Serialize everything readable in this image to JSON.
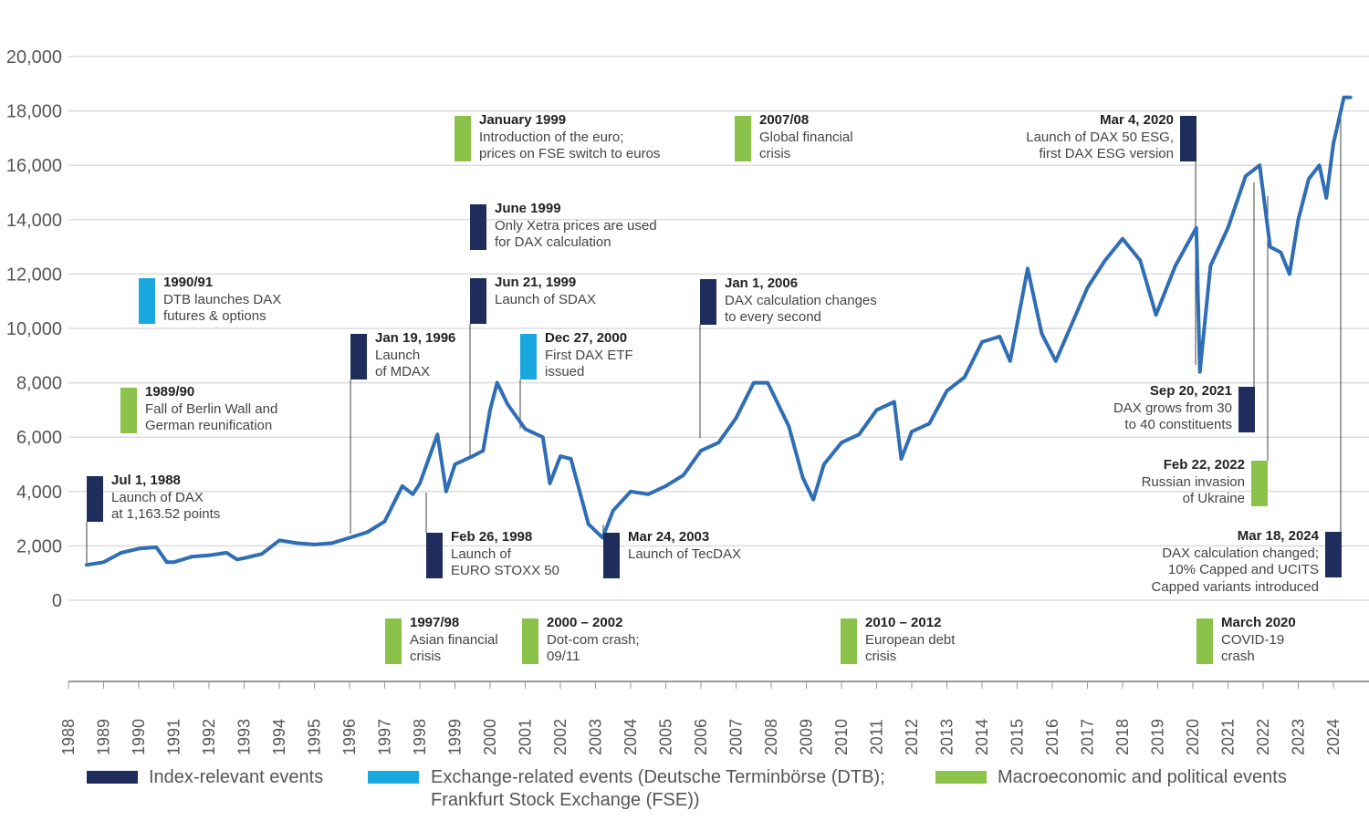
{
  "chart_data": {
    "type": "line",
    "title": "",
    "xlabel": "",
    "ylabel": "",
    "ylim": [
      0,
      20000
    ],
    "xlim": [
      1988,
      2024.8
    ],
    "y_ticks": [
      "0",
      "2,000",
      "4,000",
      "6,000",
      "8,000",
      "10,000",
      "12,000",
      "14,000",
      "16,000",
      "18,000",
      "20,000"
    ],
    "y_tick_values": [
      0,
      2000,
      4000,
      6000,
      8000,
      10000,
      12000,
      14000,
      16000,
      18000,
      20000
    ],
    "x_ticks": [
      "1988",
      "1989",
      "1990",
      "1991",
      "1992",
      "1993",
      "1994",
      "1995",
      "1996",
      "1997",
      "1998",
      "1999",
      "2000",
      "2001",
      "2002",
      "2003",
      "2004",
      "2005",
      "2006",
      "2007",
      "2008",
      "2009",
      "2010",
      "2011",
      "2012",
      "2013",
      "2014",
      "2015",
      "2016",
      "2017",
      "2018",
      "2019",
      "2020",
      "2021",
      "2022",
      "2023",
      "2024"
    ],
    "grid": "horizontal",
    "line_color": "#2f6db5",
    "series": [
      {
        "x": [
          1988.5,
          1989.0,
          1989.5,
          1990.0,
          1990.5,
          1990.8,
          1991.0,
          1991.5,
          1992.0,
          1992.5,
          1992.8,
          1993.0,
          1993.5,
          1994.0,
          1994.5,
          1995.0,
          1995.5,
          1996.0,
          1996.5,
          1997.0,
          1997.5,
          1997.8,
          1998.0,
          1998.5,
          1998.75,
          1999.0,
          1999.5,
          1999.8,
          2000.0,
          2000.2,
          2000.5,
          2001.0,
          2001.5,
          2001.7,
          2002.0,
          2002.3,
          2002.8,
          2003.2,
          2003.5,
          2004.0,
          2004.5,
          2005.0,
          2005.5,
          2006.0,
          2006.5,
          2007.0,
          2007.5,
          2007.9,
          2008.5,
          2008.9,
          2009.2,
          2009.5,
          2010.0,
          2010.5,
          2011.0,
          2011.5,
          2011.7,
          2012.0,
          2012.5,
          2013.0,
          2013.5,
          2014.0,
          2014.5,
          2014.8,
          2015.3,
          2015.7,
          2016.1,
          2016.5,
          2017.0,
          2017.5,
          2018.0,
          2018.5,
          2018.95,
          2019.5,
          2020.1,
          2020.2,
          2020.5,
          2021.0,
          2021.5,
          2021.9,
          2022.2,
          2022.5,
          2022.75,
          2023.0,
          2023.3,
          2023.6,
          2023.8,
          2024.0,
          2024.3,
          2024.5
        ],
        "y": [
          1300,
          1400,
          1750,
          1900,
          1950,
          1400,
          1400,
          1600,
          1650,
          1750,
          1500,
          1550,
          1700,
          2200,
          2100,
          2050,
          2100,
          2300,
          2500,
          2900,
          4200,
          3900,
          4300,
          6100,
          4000,
          5000,
          5300,
          5500,
          7000,
          8000,
          7200,
          6300,
          6000,
          4300,
          5300,
          5200,
          2800,
          2300,
          3300,
          4000,
          3900,
          4200,
          4600,
          5500,
          5800,
          6700,
          8000,
          8000,
          6400,
          4500,
          3700,
          5000,
          5800,
          6100,
          7000,
          7300,
          5200,
          6200,
          6500,
          7700,
          8200,
          9500,
          9700,
          8800,
          12200,
          9800,
          8800,
          10000,
          11500,
          12500,
          13300,
          12500,
          10500,
          12300,
          13700,
          8400,
          12300,
          13700,
          15600,
          16000,
          13000,
          12800,
          12000,
          14000,
          15500,
          16000,
          14800,
          16800,
          18500,
          18500
        ]
      }
    ],
    "events": [
      {
        "date": "Jul 1, 1988",
        "text": [
          "Launch of DAX",
          "at 1,163.52 points"
        ],
        "category": "index"
      },
      {
        "date": "1989/90",
        "text": [
          "Fall of Berlin Wall and",
          "German reunification"
        ],
        "category": "macro"
      },
      {
        "date": "1990/91",
        "text": [
          "DTB launches DAX",
          "futures & options"
        ],
        "category": "exchange"
      },
      {
        "date": "Jan 19, 1996",
        "text": [
          "Launch",
          "of MDAX"
        ],
        "category": "index"
      },
      {
        "date": "Feb 26, 1998",
        "text": [
          "Launch of",
          "EURO STOXX 50"
        ],
        "category": "index"
      },
      {
        "date": "January 1999",
        "text": [
          "Introduction of the euro;",
          "prices on FSE switch to euros"
        ],
        "category": "macro"
      },
      {
        "date": "June 1999",
        "text": [
          "Only Xetra prices are used",
          "for DAX calculation"
        ],
        "category": "index"
      },
      {
        "date": "Jun 21, 1999",
        "text": [
          "Launch of SDAX"
        ],
        "category": "index"
      },
      {
        "date": "Dec 27, 2000",
        "text": [
          "First DAX ETF",
          "issued"
        ],
        "category": "exchange"
      },
      {
        "date": "Mar 24, 2003",
        "text": [
          "Launch of TecDAX"
        ],
        "category": "index"
      },
      {
        "date": "Jan 1, 2006",
        "text": [
          "DAX calculation changes",
          "to every second"
        ],
        "category": "index"
      },
      {
        "date": "2007/08",
        "text": [
          "Global financial",
          "crisis"
        ],
        "category": "macro"
      },
      {
        "date": "Mar 4, 2020",
        "text": [
          "Launch of DAX 50 ESG,",
          "first DAX ESG version"
        ],
        "category": "index"
      },
      {
        "date": "Sep 20, 2021",
        "text": [
          "DAX grows from 30",
          "to 40 constituents"
        ],
        "category": "index"
      },
      {
        "date": "Feb 22, 2022",
        "text": [
          "Russian invasion",
          "of Ukraine"
        ],
        "category": "macro"
      },
      {
        "date": "Mar 18, 2024",
        "text": [
          "DAX calculation changed;",
          "10% Capped and UCITS",
          "Capped variants introduced"
        ],
        "category": "index"
      },
      {
        "date": "1997/98",
        "text": [
          "Asian financial",
          "crisis"
        ],
        "category": "macro"
      },
      {
        "date": "2000 – 2002",
        "text": [
          "Dot-com crash;",
          "09/11"
        ],
        "category": "macro"
      },
      {
        "date": "2010 – 2012",
        "text": [
          "European debt",
          "crisis"
        ],
        "category": "macro"
      },
      {
        "date": "March 2020",
        "text": [
          "COVID-19",
          "crash"
        ],
        "category": "macro"
      }
    ],
    "legend": [
      {
        "label": "Index-relevant events",
        "category": "index",
        "color": "#1f2d5c"
      },
      {
        "label": "Exchange-related events (Deutsche Terminbörse (DTB);",
        "label2": "Frankfurt Stock Exchange (FSE))",
        "category": "exchange",
        "color": "#1aa7e0"
      },
      {
        "label": "Macroeconomic and political events",
        "category": "macro",
        "color": "#8bc34a"
      }
    ],
    "legend_position": "bottom"
  }
}
